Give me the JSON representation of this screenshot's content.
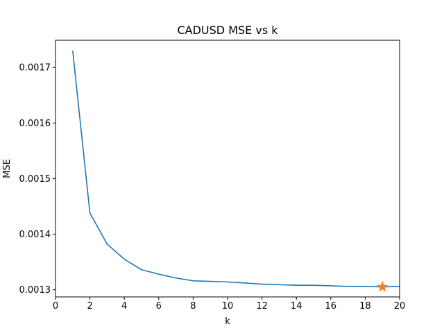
{
  "chart_data": {
    "type": "line",
    "title": "CADUSD MSE vs k",
    "xlabel": "k",
    "ylabel": "MSE",
    "xlim": [
      0,
      20
    ],
    "ylim": [
      0.001287,
      0.001749
    ],
    "xticks": [
      0,
      2,
      4,
      6,
      8,
      10,
      12,
      14,
      16,
      18,
      20
    ],
    "xtick_labels": [
      "0",
      "2",
      "4",
      "6",
      "8",
      "10",
      "12",
      "14",
      "16",
      "18",
      "20"
    ],
    "yticks": [
      0.0013,
      0.0014,
      0.0015,
      0.0016,
      0.0017
    ],
    "ytick_labels": [
      "0.0013",
      "0.0014",
      "0.0015",
      "0.0016",
      "0.0017"
    ],
    "grid": false,
    "series": [
      {
        "color": "#1f77b4",
        "x": [
          1,
          2,
          3,
          4,
          5,
          6,
          7,
          8,
          9,
          10,
          11,
          12,
          13,
          14,
          15,
          16,
          17,
          18,
          19,
          20
        ],
        "y": [
          0.00173,
          0.001438,
          0.001382,
          0.001355,
          0.001336,
          0.001328,
          0.001321,
          0.001316,
          0.001315,
          0.001314,
          0.001312,
          0.00131,
          0.001309,
          0.001308,
          0.001308,
          0.001307,
          0.001306,
          0.001306,
          0.001305,
          0.001306
        ]
      }
    ],
    "highlight": {
      "marker": "star",
      "color": "#ff7f0e",
      "x": 19,
      "y": 0.001305
    }
  }
}
